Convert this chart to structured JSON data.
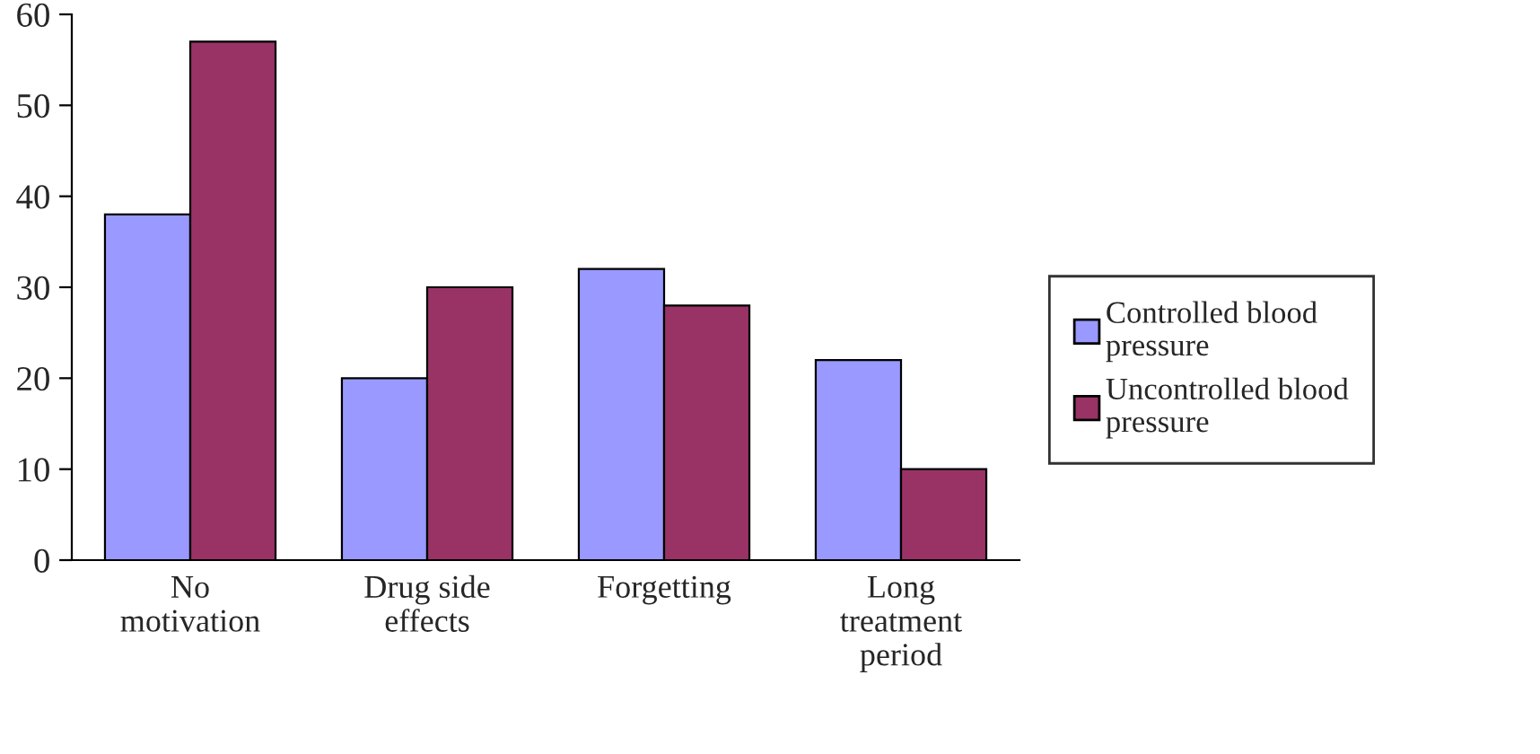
{
  "chart_data": {
    "type": "bar",
    "categories": [
      "No\nmotivation",
      "Drug side\neffects",
      "Forgetting",
      "Long\ntreatment\nperiod"
    ],
    "series": [
      {
        "name": "Controlled blood\npressure",
        "color": "#9999ff",
        "values": [
          38,
          20,
          32,
          22
        ]
      },
      {
        "name": "Uncontrolled blood\npressure",
        "color": "#993366",
        "values": [
          57,
          30,
          28,
          10
        ]
      }
    ],
    "ylim": [
      0,
      60
    ],
    "yticks": [
      0,
      10,
      20,
      30,
      40,
      50,
      60
    ],
    "grid": false,
    "legend": "right"
  }
}
